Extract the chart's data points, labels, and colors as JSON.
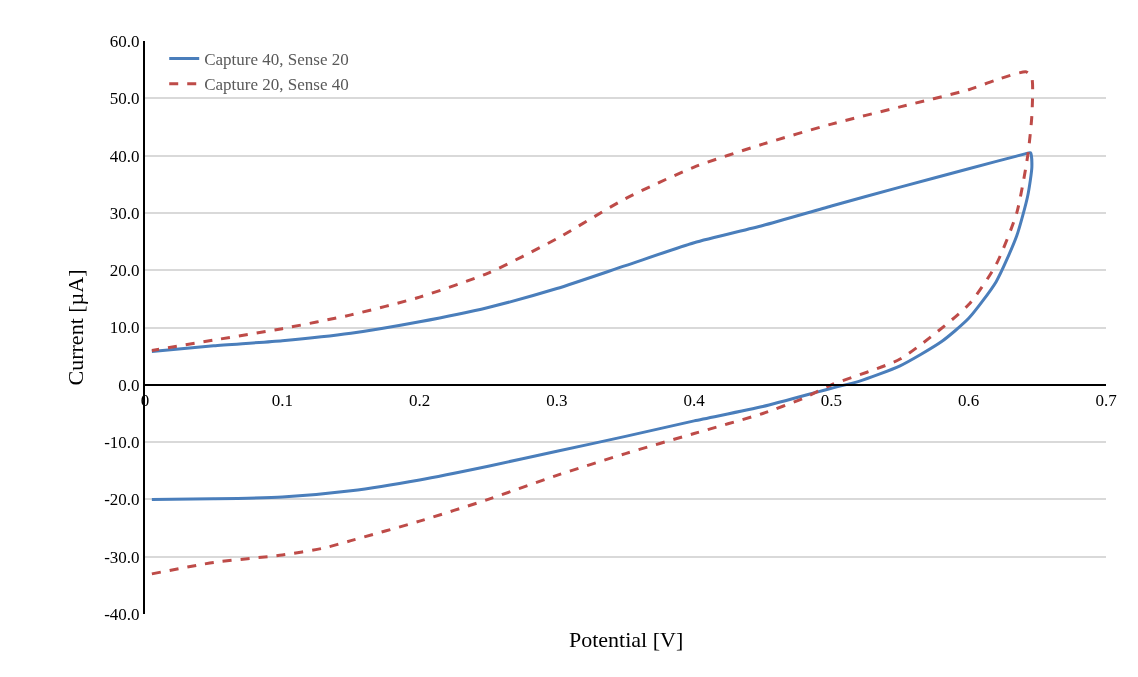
{
  "chart_data": {
    "type": "line",
    "xlabel": "Potential [V]",
    "ylabel": "Current [µA]",
    "xlim": [
      0,
      0.7
    ],
    "xticks": [
      0,
      0.1,
      0.2,
      0.3,
      0.4,
      0.5,
      0.6,
      0.7
    ],
    "ylim": [
      -40,
      60
    ],
    "yticks": [
      {
        "value": -40,
        "label": "-40.0"
      },
      {
        "value": -30,
        "label": "-30.0"
      },
      {
        "value": -20,
        "label": "-20.0"
      },
      {
        "value": -10,
        "label": "-10.0"
      },
      {
        "value": 0,
        "label": "0.0"
      },
      {
        "value": 10,
        "label": "10.0"
      },
      {
        "value": 20,
        "label": "20.0"
      },
      {
        "value": 30,
        "label": "30.0"
      },
      {
        "value": 40,
        "label": "40.0"
      },
      {
        "value": 50,
        "label": "50.0"
      },
      {
        "value": 60,
        "label": "60.0"
      }
    ],
    "grid": "y",
    "legend": "top left",
    "series": [
      {
        "name": "Capture 40, Sense 20",
        "color": "#4a7ebb",
        "line_style": "solid",
        "x": [
          0.005,
          0.05,
          0.1,
          0.15,
          0.2,
          0.25,
          0.3,
          0.35,
          0.4,
          0.45,
          0.5,
          0.52,
          0.55,
          0.58,
          0.6,
          0.62,
          0.635,
          0.643,
          0.646,
          0.645,
          0.641,
          0.6,
          0.55,
          0.5,
          0.45,
          0.4,
          0.35,
          0.3,
          0.25,
          0.2,
          0.15,
          0.1,
          0.05,
          0.005
        ],
        "values": [
          -20,
          -19.9,
          -19.6,
          -18.5,
          -16.6,
          -14.2,
          -11.6,
          -9,
          -6.3,
          -3.8,
          -0.6,
          0.6,
          3.3,
          7.5,
          11.6,
          18,
          26,
          33,
          38,
          40.5,
          40.3,
          37.7,
          34.5,
          31.2,
          27.8,
          24.8,
          20.8,
          16.8,
          13.5,
          11,
          9,
          7.7,
          6.8,
          5.8
        ]
      },
      {
        "name": "Capture 20, Sense 40",
        "color": "#be4b48",
        "line_style": "dashed",
        "x": [
          0.005,
          0.05,
          0.1,
          0.13,
          0.15,
          0.2,
          0.25,
          0.3,
          0.35,
          0.4,
          0.45,
          0.48,
          0.5,
          0.55,
          0.6,
          0.62,
          0.635,
          0.643,
          0.646,
          0.646,
          0.642,
          0.62,
          0.6,
          0.55,
          0.5,
          0.45,
          0.4,
          0.35,
          0.3,
          0.25,
          0.2,
          0.15,
          0.1,
          0.05,
          0.005
        ],
        "values": [
          -33,
          -31,
          -29.7,
          -28.5,
          -27.2,
          -23.8,
          -20,
          -15.8,
          -12,
          -8.5,
          -5,
          -2.3,
          0,
          4.5,
          14,
          21,
          30,
          40,
          47,
          53.5,
          54.6,
          53.2,
          51.5,
          48.5,
          45.5,
          42,
          38,
          32.5,
          25.5,
          19.5,
          15.3,
          12.2,
          9.8,
          7.8,
          6
        ]
      }
    ]
  }
}
